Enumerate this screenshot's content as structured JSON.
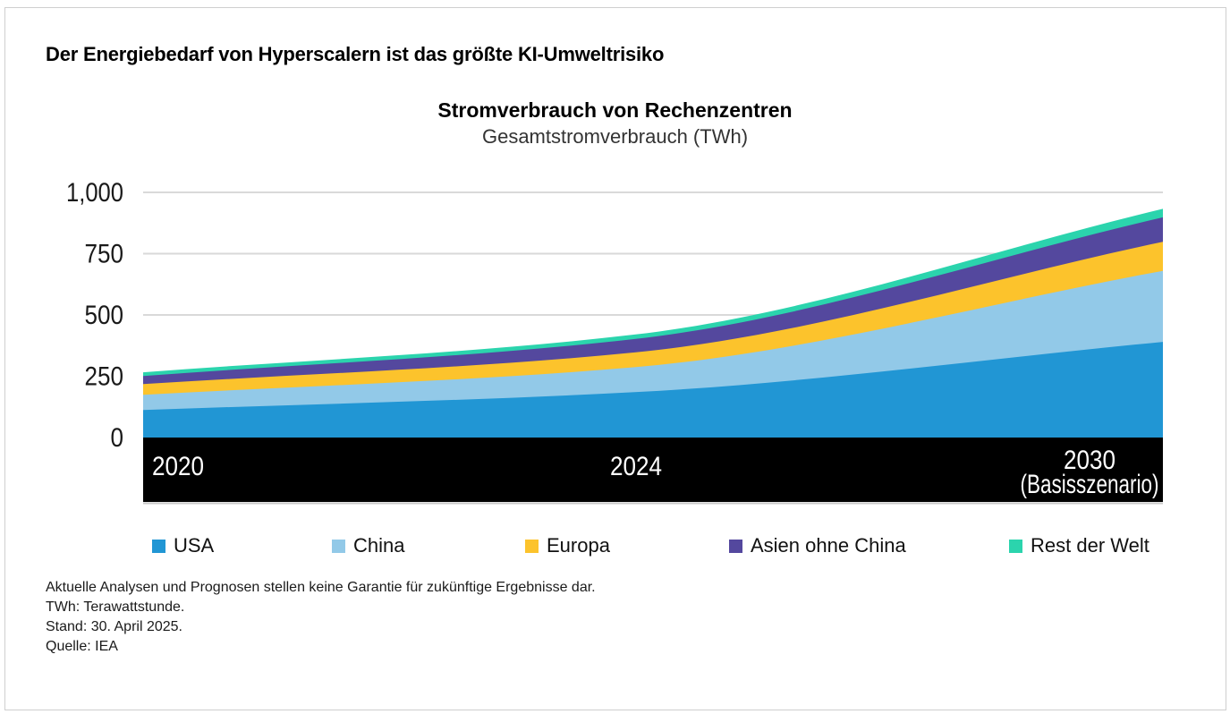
{
  "page": {
    "heading": "Der Energiebedarf von Hyperscalern ist das größte KI-Umweltrisiko"
  },
  "chart_data": {
    "type": "area",
    "stacked": true,
    "title": "Stromverbrauch von Rechenzentren",
    "subtitle": "Gesamtstromverbrauch (TWh)",
    "unit": "TWh",
    "categories": [
      "2020",
      "2024",
      "2030 (Basisszenario)"
    ],
    "x_positions": [
      0,
      0.482,
      1
    ],
    "series": [
      {
        "name": "USA",
        "color": "#2196d4",
        "values": [
          112,
          185,
          390
        ]
      },
      {
        "name": "China",
        "color": "#92c9e8",
        "values": [
          62,
          102,
          290
        ]
      },
      {
        "name": "Europa",
        "color": "#fcc32c",
        "values": [
          44,
          60,
          118
        ]
      },
      {
        "name": "Asien ohne China",
        "color": "#54489e",
        "values": [
          33,
          55,
          100
        ]
      },
      {
        "name": "Rest der Welt",
        "color": "#2bd4ad",
        "values": [
          15,
          18,
          35
        ]
      }
    ],
    "totals": [
      266,
      420,
      933
    ],
    "ylim": [
      0,
      1000
    ],
    "ytick_values": [
      0,
      250,
      500,
      750,
      1000
    ],
    "ytick_labels": [
      "0",
      "250",
      "500",
      "750",
      "1,000"
    ],
    "grid": "horizontal",
    "grid_color": "#d9d9d9",
    "axis_band_color": "#000000",
    "axis_band_text_color": "#ffffff",
    "legend_position": "bottom",
    "band_labels": {
      "left": "2020",
      "middle": "2024",
      "right_line1": "2030",
      "right_line2": "(Basisszenario)"
    }
  },
  "footnotes": {
    "lines": [
      "Aktuelle Analysen und Prognosen stellen keine Garantie für zukünftige Ergebnisse dar.",
      "TWh: Terawattstunde.",
      "Stand: 30. April 2025.",
      "Quelle: IEA"
    ]
  }
}
